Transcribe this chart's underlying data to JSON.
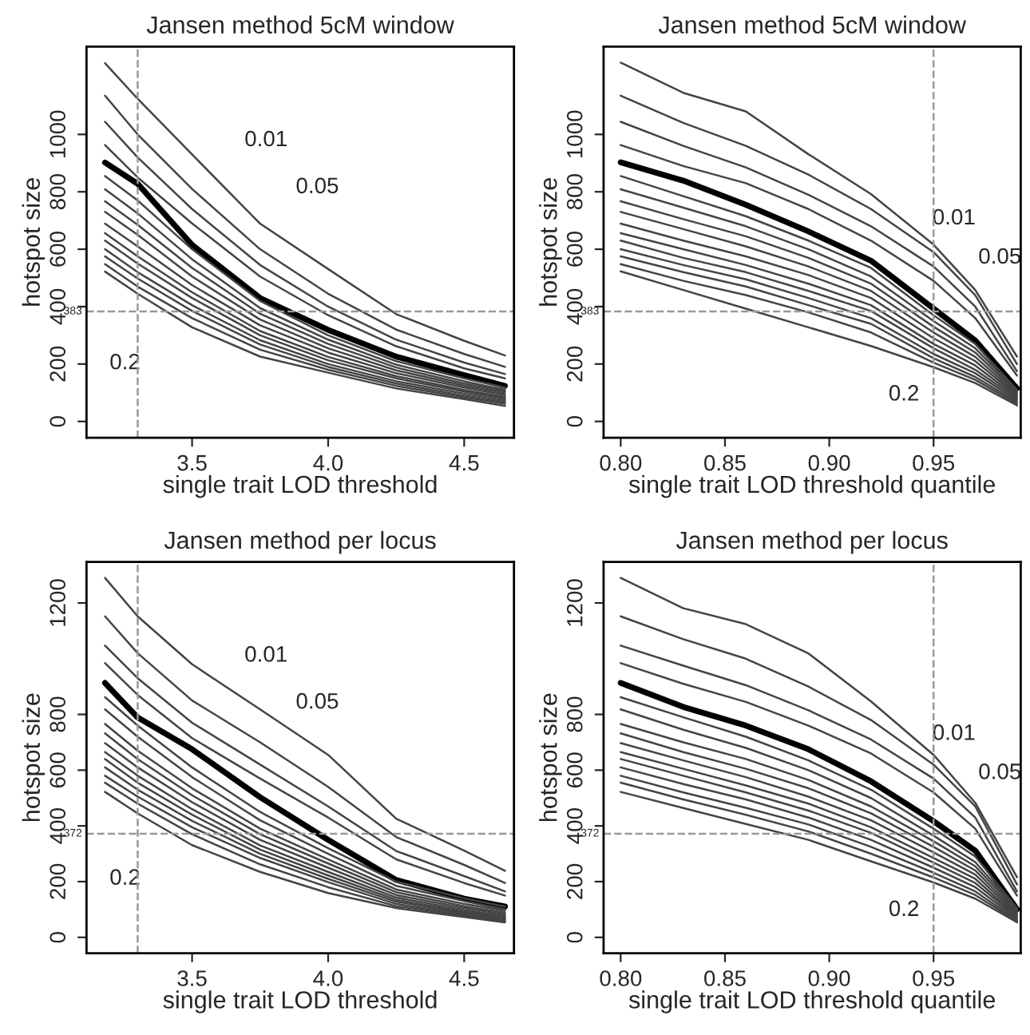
{
  "chart_data": [
    {
      "type": "line",
      "title": "Jansen method 5cM window",
      "xlabel": "single trait LOD threshold",
      "ylabel": "hotspot size",
      "xlim": [
        3.112,
        4.683
      ],
      "ylim": [
        -57,
        1306
      ],
      "xticks": [
        3.5,
        {
          "value": 4.0,
          "label": "4.0"
        },
        4.5
      ],
      "yticks": [
        0,
        200,
        400,
        600,
        800,
        1000
      ],
      "grid": false,
      "legend": false,
      "x": [
        3.18,
        3.3,
        3.5,
        3.75,
        4.0,
        4.25,
        4.5,
        4.65
      ],
      "series": [
        {
          "color": "#444444",
          "values": [
            1248,
            1124,
            930,
            689,
            531,
            374,
            281,
            230
          ]
        },
        {
          "color": "#444444",
          "values": [
            1135,
            1000,
            810,
            600,
            445,
            320,
            235,
            190
          ]
        },
        {
          "color": "#444444",
          "values": [
            1044,
            920,
            740,
            545,
            400,
            285,
            205,
            165
          ]
        },
        {
          "color": "#444444",
          "values": [
            963,
            850,
            690,
            505,
            370,
            262,
            185,
            150
          ]
        },
        {
          "color": "#000000",
          "values": [
            902,
            828,
            615,
            430,
            319,
            226,
            161,
            124
          ]
        },
        {
          "color": "#444444",
          "values": [
            855,
            770,
            600,
            420,
            300,
            210,
            150,
            118
          ]
        },
        {
          "color": "#444444",
          "values": [
            809,
            725,
            565,
            395,
            285,
            198,
            140,
            110
          ]
        },
        {
          "color": "#444444",
          "values": [
            767,
            685,
            535,
            375,
            270,
            188,
            132,
            104
          ]
        },
        {
          "color": "#444444",
          "values": [
            730,
            650,
            505,
            355,
            255,
            178,
            125,
            98
          ]
        },
        {
          "color": "#444444",
          "values": [
            689,
            610,
            475,
            335,
            240,
            168,
            118,
            92
          ]
        },
        {
          "color": "#444444",
          "values": [
            656,
            575,
            450,
            315,
            225,
            158,
            110,
            85
          ]
        },
        {
          "color": "#444444",
          "values": [
            630,
            550,
            430,
            300,
            213,
            150,
            104,
            80
          ]
        },
        {
          "color": "#444444",
          "values": [
            600,
            520,
            405,
            283,
            200,
            140,
            97,
            74
          ]
        },
        {
          "color": "#444444",
          "values": [
            575,
            498,
            385,
            268,
            190,
            132,
            90,
            68
          ]
        },
        {
          "color": "#444444",
          "values": [
            548,
            470,
            360,
            250,
            180,
            124,
            84,
            62
          ]
        },
        {
          "color": "#444444",
          "values": [
            522,
            445,
            328,
            226,
            170,
            115,
            78,
            54
          ]
        }
      ],
      "ref_lines": [
        {
          "axis": "x",
          "value": 3.3,
          "color": "#999999",
          "line_style": "dashed"
        },
        {
          "axis": "y",
          "value": 383,
          "label": "383",
          "color": "#999999",
          "line_style": "dashed"
        }
      ],
      "annotations": [
        "0.01",
        "0.05",
        "0.2"
      ]
    },
    {
      "type": "line",
      "title": "Jansen method 5cM window",
      "xlabel": "single trait LOD threshold quantile",
      "ylabel": "hotspot size",
      "xlim": [
        0.7918,
        0.9918
      ],
      "ylim": [
        -57,
        1306
      ],
      "xticks": [
        {
          "value": 0.8,
          "label": "0.80"
        },
        0.85,
        {
          "value": 0.9,
          "label": "0.90"
        },
        0.95
      ],
      "yticks": [
        0,
        200,
        400,
        600,
        800,
        1000
      ],
      "grid": false,
      "legend": false,
      "x": [
        0.8,
        0.83,
        0.86,
        0.89,
        0.92,
        0.95,
        0.97,
        0.99
      ],
      "series": [
        {
          "color": "#444444",
          "values": [
            1250,
            1145,
            1080,
            931,
            792,
            616,
            458,
            226
          ]
        },
        {
          "color": "#444444",
          "values": [
            1135,
            1040,
            960,
            860,
            740,
            590,
            440,
            200
          ]
        },
        {
          "color": "#444444",
          "values": [
            1044,
            960,
            885,
            790,
            680,
            540,
            400,
            175
          ]
        },
        {
          "color": "#444444",
          "values": [
            963,
            890,
            830,
            740,
            630,
            490,
            360,
            160
          ]
        },
        {
          "color": "#000000",
          "values": [
            903,
            839,
            755,
            662,
            560,
            393,
            282,
            115
          ]
        },
        {
          "color": "#444444",
          "values": [
            855,
            785,
            715,
            630,
            535,
            370,
            270,
            110
          ]
        },
        {
          "color": "#444444",
          "values": [
            809,
            745,
            680,
            600,
            505,
            350,
            255,
            105
          ]
        },
        {
          "color": "#444444",
          "values": [
            767,
            705,
            645,
            570,
            480,
            330,
            240,
            100
          ]
        },
        {
          "color": "#444444",
          "values": [
            730,
            670,
            610,
            540,
            455,
            310,
            225,
            95
          ]
        },
        {
          "color": "#444444",
          "values": [
            689,
            630,
            575,
            510,
            430,
            290,
            210,
            90
          ]
        },
        {
          "color": "#444444",
          "values": [
            656,
            600,
            545,
            480,
            405,
            270,
            195,
            85
          ]
        },
        {
          "color": "#444444",
          "values": [
            630,
            570,
            520,
            455,
            385,
            255,
            180,
            80
          ]
        },
        {
          "color": "#444444",
          "values": [
            600,
            545,
            495,
            430,
            360,
            235,
            168,
            74
          ]
        },
        {
          "color": "#444444",
          "values": [
            575,
            520,
            470,
            405,
            340,
            220,
            155,
            68
          ]
        },
        {
          "color": "#444444",
          "values": [
            548,
            490,
            440,
            380,
            310,
            205,
            145,
            62
          ]
        },
        {
          "color": "#444444",
          "values": [
            523,
            458,
            393,
            328,
            263,
            189,
            134,
            56
          ]
        }
      ],
      "ref_lines": [
        {
          "axis": "x",
          "value": 0.95,
          "color": "#999999",
          "line_style": "dashed"
        },
        {
          "axis": "y",
          "value": 383,
          "label": "383",
          "color": "#999999",
          "line_style": "dashed"
        }
      ],
      "annotations": [
        "0.01",
        "0.05",
        "0.2"
      ]
    },
    {
      "type": "line",
      "title": "Jansen method per locus",
      "xlabel": "single trait LOD threshold",
      "ylabel": "hotspot size",
      "xlim": [
        3.112,
        4.683
      ],
      "ylim": [
        -57,
        1347
      ],
      "xticks": [
        3.5,
        {
          "value": 4.0,
          "label": "4.0"
        },
        4.5
      ],
      "yticks": [
        0,
        200,
        400,
        600,
        800,
        1200
      ],
      "grid": false,
      "legend": false,
      "x": [
        3.18,
        3.3,
        3.5,
        3.75,
        4.0,
        4.25,
        4.5,
        4.65
      ],
      "series": [
        {
          "color": "#444444",
          "values": [
            1290,
            1152,
            980,
            818,
            655,
            426,
            311,
            239
          ]
        },
        {
          "color": "#444444",
          "values": [
            1152,
            1020,
            850,
            700,
            540,
            360,
            260,
            195
          ]
        },
        {
          "color": "#444444",
          "values": [
            1047,
            930,
            770,
            620,
            470,
            310,
            220,
            165
          ]
        },
        {
          "color": "#444444",
          "values": [
            984,
            870,
            715,
            570,
            430,
            280,
            195,
            150
          ]
        },
        {
          "color": "#000000",
          "values": [
            913,
            789,
            675,
            503,
            350,
            206,
            139,
            111
          ]
        },
        {
          "color": "#444444",
          "values": [
            862,
            760,
            610,
            450,
            320,
            200,
            140,
            110
          ]
        },
        {
          "color": "#444444",
          "values": [
            818,
            720,
            575,
            420,
            300,
            185,
            130,
            100
          ]
        },
        {
          "color": "#444444",
          "values": [
            766,
            670,
            535,
            390,
            280,
            172,
            120,
            95
          ]
        },
        {
          "color": "#444444",
          "values": [
            732,
            640,
            510,
            370,
            265,
            162,
            112,
            88
          ]
        },
        {
          "color": "#444444",
          "values": [
            697,
            610,
            485,
            350,
            250,
            152,
            105,
            82
          ]
        },
        {
          "color": "#444444",
          "values": [
            665,
            580,
            460,
            330,
            235,
            143,
            98,
            76
          ]
        },
        {
          "color": "#444444",
          "values": [
            640,
            555,
            440,
            315,
            222,
            135,
            92,
            72
          ]
        },
        {
          "color": "#444444",
          "values": [
            610,
            530,
            418,
            300,
            210,
            128,
            88,
            67
          ]
        },
        {
          "color": "#444444",
          "values": [
            580,
            505,
            395,
            285,
            198,
            120,
            83,
            62
          ]
        },
        {
          "color": "#444444",
          "values": [
            555,
            480,
            370,
            262,
            180,
            112,
            78,
            58
          ]
        },
        {
          "color": "#444444",
          "values": [
            522,
            445,
            331,
            235,
            159,
            105,
            73,
            54
          ]
        }
      ],
      "ref_lines": [
        {
          "axis": "x",
          "value": 3.3,
          "color": "#999999",
          "line_style": "dashed"
        },
        {
          "axis": "y",
          "value": 372,
          "label": "372",
          "color": "#999999",
          "line_style": "dashed"
        }
      ],
      "annotations": [
        "0.01",
        "0.05",
        "0.2"
      ]
    },
    {
      "type": "line",
      "title": "Jansen method per locus",
      "xlabel": "single trait LOD threshold quantile",
      "ylabel": "hotspot size",
      "xlim": [
        0.7918,
        0.9918
      ],
      "ylim": [
        -57,
        1347
      ],
      "xticks": [
        {
          "value": 0.8,
          "label": "0.80"
        },
        0.85,
        {
          "value": 0.9,
          "label": "0.90"
        },
        0.95
      ],
      "yticks": [
        0,
        200,
        400,
        600,
        800,
        1200
      ],
      "grid": false,
      "legend": false,
      "x": [
        0.8,
        0.83,
        0.86,
        0.89,
        0.92,
        0.95,
        0.97,
        0.99
      ],
      "series": [
        {
          "color": "#444444",
          "values": [
            1290,
            1181,
            1124,
            1019,
            847,
            655,
            483,
            216
          ]
        },
        {
          "color": "#444444",
          "values": [
            1152,
            1070,
            1000,
            900,
            780,
            620,
            470,
            190
          ]
        },
        {
          "color": "#444444",
          "values": [
            1047,
            975,
            905,
            815,
            710,
            570,
            430,
            165
          ]
        },
        {
          "color": "#444444",
          "values": [
            984,
            910,
            845,
            760,
            660,
            520,
            390,
            150
          ]
        },
        {
          "color": "#000000",
          "values": [
            913,
            827,
            760,
            675,
            560,
            417,
            311,
            101
          ]
        },
        {
          "color": "#444444",
          "values": [
            862,
            790,
            720,
            635,
            530,
            390,
            290,
            105
          ]
        },
        {
          "color": "#444444",
          "values": [
            818,
            745,
            680,
            600,
            500,
            365,
            270,
            100
          ]
        },
        {
          "color": "#444444",
          "values": [
            766,
            700,
            640,
            565,
            470,
            345,
            255,
            95
          ]
        },
        {
          "color": "#444444",
          "values": [
            732,
            665,
            605,
            535,
            445,
            325,
            240,
            88
          ]
        },
        {
          "color": "#444444",
          "values": [
            697,
            635,
            575,
            505,
            420,
            305,
            225,
            82
          ]
        },
        {
          "color": "#444444",
          "values": [
            665,
            605,
            545,
            480,
            395,
            285,
            210,
            76
          ]
        },
        {
          "color": "#444444",
          "values": [
            640,
            580,
            520,
            455,
            375,
            268,
            195,
            72
          ]
        },
        {
          "color": "#444444",
          "values": [
            610,
            550,
            495,
            430,
            350,
            250,
            180,
            67
          ]
        },
        {
          "color": "#444444",
          "values": [
            580,
            520,
            465,
            405,
            325,
            232,
            165,
            62
          ]
        },
        {
          "color": "#444444",
          "values": [
            555,
            495,
            440,
            380,
            300,
            215,
            152,
            58
          ]
        },
        {
          "color": "#444444",
          "values": [
            522,
            464,
            407,
            350,
            273,
            197,
            139,
            54
          ]
        }
      ],
      "ref_lines": [
        {
          "axis": "x",
          "value": 0.95,
          "color": "#999999",
          "line_style": "dashed"
        },
        {
          "axis": "y",
          "value": 372,
          "label": "372",
          "color": "#999999",
          "line_style": "dashed"
        }
      ],
      "annotations": [
        "0.01",
        "0.05",
        "0.2"
      ]
    }
  ]
}
